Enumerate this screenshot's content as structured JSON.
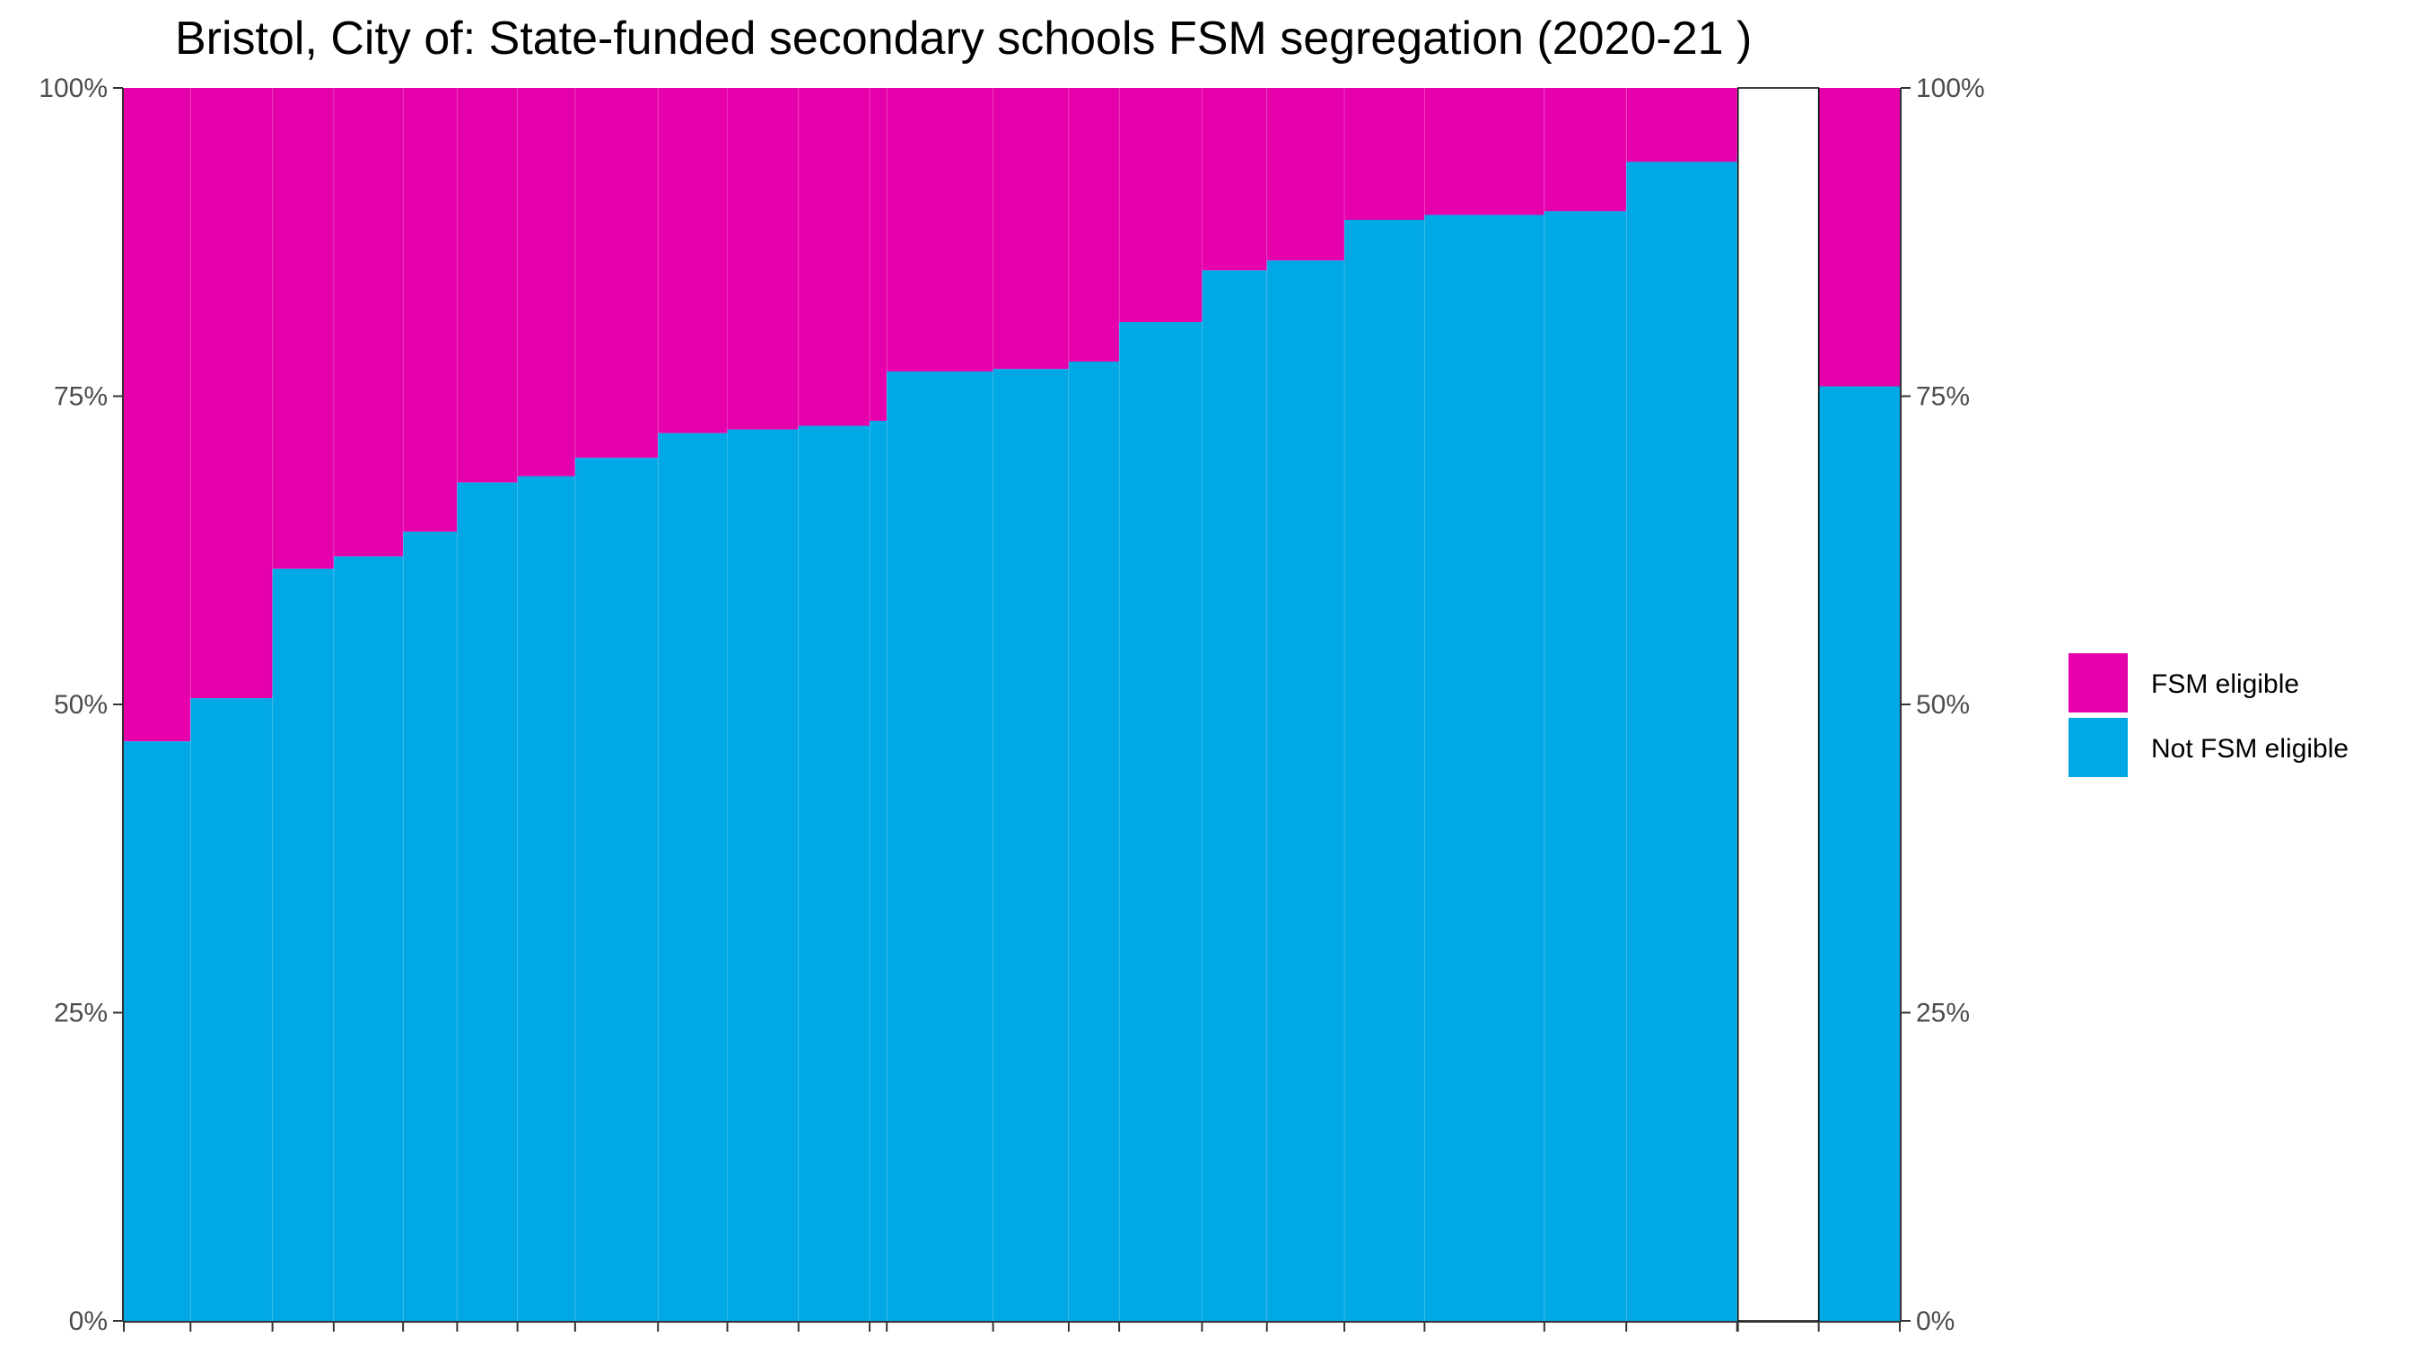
{
  "chart_data": {
    "type": "bar",
    "title": "Bristol, City of: State-funded secondary schools FSM segregation (2020-21 )",
    "xlabel": "",
    "ylabel": "",
    "ylim": [
      0,
      100
    ],
    "y_ticks": [
      "0%",
      "25%",
      "50%",
      "75%",
      "100%"
    ],
    "stacked": true,
    "variable_width": true,
    "grid": false,
    "legend_position": "right",
    "colors": {
      "FSM eligible": "#E600AC",
      "Not FSM eligible": "#00A8E6"
    },
    "series": [
      {
        "name": "Not FSM eligible",
        "values": [
          47,
          50.5,
          61,
          62,
          64,
          68,
          68.5,
          70,
          72,
          72.3,
          72.6,
          73,
          77,
          77.2,
          77.8,
          81,
          85.2,
          86,
          89.3,
          89.7,
          90,
          94,
          94.6,
          75.8
        ]
      },
      {
        "name": "FSM eligible",
        "values": [
          53,
          49.5,
          39,
          38,
          36,
          32,
          31.5,
          30,
          28,
          27.7,
          27.4,
          27,
          23,
          22.8,
          22.2,
          19,
          14.8,
          14,
          10.7,
          10.3,
          10,
          6,
          5.4,
          24.2
        ]
      }
    ],
    "bar_widths": [
      74,
      91,
      68,
      77,
      60,
      67,
      64,
      92,
      77,
      79,
      79,
      19,
      118,
      84,
      56,
      92,
      72,
      86,
      89,
      133,
      91,
      123,
      1,
      90
    ],
    "gap_after_index": 22
  },
  "legend": {
    "items": [
      {
        "label": "FSM eligible",
        "color": "#E600AC"
      },
      {
        "label": "Not FSM eligible",
        "color": "#00A8E6"
      }
    ]
  }
}
